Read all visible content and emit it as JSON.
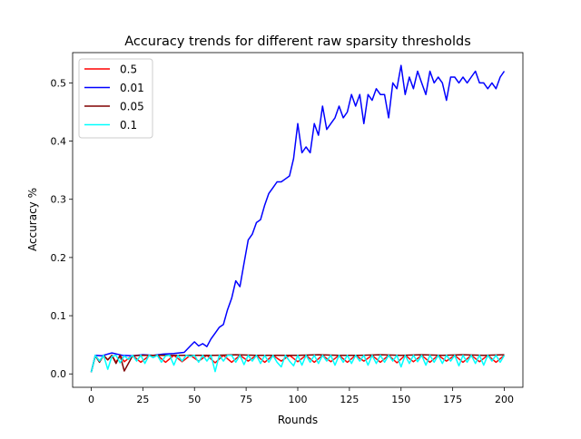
{
  "chart_data": {
    "type": "line",
    "title": "Accuracy trends for different raw sparsity thresholds",
    "xlabel": "Rounds",
    "ylabel": "Accuracy %",
    "xlim": [
      -9,
      209
    ],
    "ylim": [
      -0.023,
      0.552
    ],
    "xticks": [
      0,
      25,
      50,
      75,
      100,
      125,
      150,
      175,
      200
    ],
    "yticks": [
      0.0,
      0.1,
      0.2,
      0.3,
      0.4,
      0.5
    ],
    "ytick_labels": [
      "0.0",
      "0.1",
      "0.2",
      "0.3",
      "0.4",
      "0.5"
    ],
    "grid": false,
    "legend_position": "top-left",
    "series": [
      {
        "name": "0.5",
        "color": "#ff0000",
        "x": [
          0,
          2,
          4,
          6,
          8,
          10,
          12,
          14,
          16,
          20,
          24,
          28,
          32,
          36,
          40,
          44,
          48,
          52,
          56,
          60,
          64,
          68,
          72,
          76,
          80,
          84,
          88,
          92,
          96,
          100,
          104,
          108,
          112,
          116,
          120,
          124,
          128,
          132,
          136,
          140,
          144,
          148,
          152,
          156,
          160,
          164,
          168,
          172,
          176,
          180,
          184,
          188,
          192,
          196,
          200
        ],
        "y": [
          0.003,
          0.032,
          0.022,
          0.032,
          0.024,
          0.032,
          0.02,
          0.032,
          0.021,
          0.032,
          0.02,
          0.031,
          0.032,
          0.02,
          0.032,
          0.021,
          0.032,
          0.022,
          0.032,
          0.019,
          0.032,
          0.02,
          0.032,
          0.022,
          0.032,
          0.02,
          0.032,
          0.022,
          0.032,
          0.021,
          0.032,
          0.02,
          0.032,
          0.021,
          0.032,
          0.02,
          0.032,
          0.022,
          0.032,
          0.02,
          0.032,
          0.019,
          0.032,
          0.021,
          0.032,
          0.02,
          0.032,
          0.022,
          0.032,
          0.02,
          0.032,
          0.021,
          0.032,
          0.02,
          0.032
        ]
      },
      {
        "name": "0.01",
        "color": "#0000ff",
        "x": [
          0,
          2,
          5,
          10,
          15,
          20,
          25,
          30,
          35,
          40,
          45,
          48,
          50,
          52,
          54,
          56,
          58,
          60,
          62,
          64,
          66,
          68,
          70,
          72,
          74,
          76,
          78,
          80,
          82,
          84,
          86,
          88,
          90,
          92,
          94,
          96,
          98,
          100,
          102,
          104,
          106,
          108,
          110,
          112,
          114,
          116,
          118,
          120,
          122,
          124,
          126,
          128,
          130,
          132,
          134,
          136,
          138,
          140,
          142,
          144,
          146,
          148,
          150,
          152,
          154,
          156,
          158,
          160,
          162,
          164,
          166,
          168,
          170,
          172,
          174,
          176,
          178,
          180,
          182,
          184,
          186,
          188,
          190,
          192,
          194,
          196,
          198,
          200
        ],
        "y": [
          0.003,
          0.032,
          0.031,
          0.036,
          0.032,
          0.031,
          0.033,
          0.032,
          0.034,
          0.035,
          0.037,
          0.048,
          0.055,
          0.048,
          0.052,
          0.047,
          0.06,
          0.07,
          0.08,
          0.085,
          0.11,
          0.13,
          0.16,
          0.15,
          0.19,
          0.23,
          0.24,
          0.26,
          0.265,
          0.29,
          0.31,
          0.32,
          0.33,
          0.33,
          0.335,
          0.34,
          0.37,
          0.43,
          0.38,
          0.39,
          0.38,
          0.43,
          0.41,
          0.46,
          0.42,
          0.43,
          0.44,
          0.46,
          0.44,
          0.45,
          0.48,
          0.46,
          0.48,
          0.43,
          0.48,
          0.47,
          0.49,
          0.48,
          0.48,
          0.44,
          0.5,
          0.49,
          0.53,
          0.48,
          0.51,
          0.49,
          0.52,
          0.5,
          0.48,
          0.52,
          0.5,
          0.51,
          0.5,
          0.47,
          0.51,
          0.51,
          0.5,
          0.51,
          0.5,
          0.51,
          0.52,
          0.5,
          0.5,
          0.49,
          0.5,
          0.49,
          0.51,
          0.52
        ]
      },
      {
        "name": "0.05",
        "color": "#800000",
        "x": [
          0,
          2,
          4,
          6,
          8,
          10,
          12,
          14,
          16,
          20,
          24,
          30,
          40,
          50,
          60,
          70,
          80,
          90,
          100,
          110,
          120,
          130,
          140,
          150,
          160,
          170,
          180,
          190,
          200
        ],
        "y": [
          0.003,
          0.031,
          0.02,
          0.032,
          0.024,
          0.032,
          0.018,
          0.032,
          0.005,
          0.031,
          0.032,
          0.032,
          0.032,
          0.032,
          0.032,
          0.033,
          0.032,
          0.032,
          0.032,
          0.033,
          0.032,
          0.032,
          0.033,
          0.032,
          0.033,
          0.032,
          0.033,
          0.032,
          0.033
        ]
      },
      {
        "name": "0.1",
        "color": "#00ffff",
        "x": [
          0,
          2,
          4,
          6,
          8,
          10,
          12,
          14,
          16,
          18,
          20,
          22,
          24,
          26,
          28,
          30,
          32,
          34,
          36,
          38,
          40,
          42,
          44,
          46,
          48,
          50,
          52,
          54,
          56,
          58,
          60,
          62,
          64,
          66,
          68,
          70,
          72,
          74,
          76,
          78,
          80,
          82,
          84,
          86,
          88,
          90,
          92,
          94,
          96,
          98,
          100,
          102,
          104,
          106,
          108,
          110,
          112,
          114,
          116,
          118,
          120,
          122,
          124,
          126,
          128,
          130,
          132,
          134,
          136,
          138,
          140,
          142,
          144,
          146,
          148,
          150,
          152,
          154,
          156,
          158,
          160,
          162,
          164,
          166,
          168,
          170,
          172,
          174,
          176,
          178,
          180,
          182,
          184,
          186,
          188,
          190,
          192,
          194,
          196,
          198,
          200
        ],
        "y": [
          0.003,
          0.032,
          0.022,
          0.032,
          0.008,
          0.03,
          0.032,
          0.019,
          0.031,
          0.025,
          0.032,
          0.022,
          0.032,
          0.018,
          0.032,
          0.028,
          0.032,
          0.02,
          0.031,
          0.032,
          0.015,
          0.032,
          0.022,
          0.032,
          0.03,
          0.032,
          0.02,
          0.032,
          0.022,
          0.032,
          0.004,
          0.032,
          0.022,
          0.032,
          0.032,
          0.02,
          0.032,
          0.016,
          0.032,
          0.022,
          0.032,
          0.018,
          0.032,
          0.02,
          0.032,
          0.02,
          0.012,
          0.032,
          0.022,
          0.014,
          0.032,
          0.015,
          0.032,
          0.02,
          0.032,
          0.018,
          0.032,
          0.022,
          0.032,
          0.015,
          0.032,
          0.02,
          0.032,
          0.018,
          0.032,
          0.022,
          0.032,
          0.015,
          0.032,
          0.018,
          0.032,
          0.02,
          0.032,
          0.022,
          0.032,
          0.012,
          0.032,
          0.018,
          0.032,
          0.021,
          0.032,
          0.015,
          0.032,
          0.02,
          0.032,
          0.018,
          0.032,
          0.022,
          0.032,
          0.014,
          0.032,
          0.02,
          0.032,
          0.018,
          0.032,
          0.015,
          0.032,
          0.022,
          0.032,
          0.02,
          0.032
        ]
      }
    ]
  }
}
